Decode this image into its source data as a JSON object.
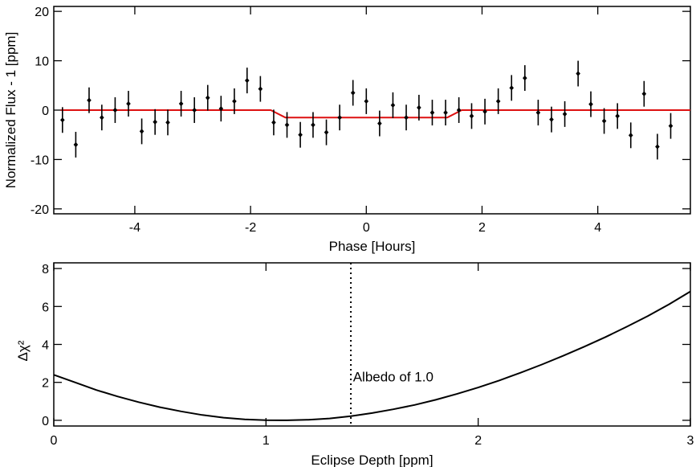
{
  "chart_data": [
    {
      "type": "scatter",
      "xlabel": "Phase [Hours]",
      "ylabel": "Normalized Flux - 1 [ppm]",
      "xlim": [
        -5.4,
        5.6
      ],
      "ylim": [
        -21,
        21
      ],
      "xticks": [
        -4,
        -2,
        0,
        2,
        4
      ],
      "yticks": [
        -20,
        -10,
        0,
        10,
        20
      ],
      "grid": false,
      "series": [
        {
          "type": "scatter_errorbars",
          "color": "#000000",
          "x": [
            -5.25,
            -5.02,
            -4.79,
            -4.57,
            -4.34,
            -4.11,
            -3.88,
            -3.65,
            -3.43,
            -3.2,
            -2.97,
            -2.74,
            -2.51,
            -2.28,
            -2.06,
            -1.83,
            -1.6,
            -1.37,
            -1.14,
            -0.92,
            -0.69,
            -0.46,
            -0.23,
            0.0,
            0.23,
            0.46,
            0.69,
            0.91,
            1.14,
            1.37,
            1.6,
            1.82,
            2.05,
            2.28,
            2.51,
            2.74,
            2.97,
            3.2,
            3.43,
            3.66,
            3.88,
            4.11,
            4.34,
            4.57,
            4.8,
            5.03,
            5.26
          ],
          "y": [
            -2,
            -7,
            2,
            -1.5,
            0,
            1.3,
            -4.3,
            -2.4,
            -2.5,
            1.3,
            0,
            2.5,
            0.3,
            1.8,
            6,
            4.3,
            -2.5,
            -3,
            -5,
            -3,
            -4.5,
            -1.5,
            3.5,
            1.8,
            -2.7,
            1,
            -1.5,
            0.5,
            -0.5,
            -0.5,
            0,
            -1.2,
            -0.3,
            1.8,
            4.5,
            6.5,
            -0.5,
            -1.9,
            -0.8,
            7.4,
            1.2,
            -2.2,
            -1.2,
            -5.1,
            3.3,
            -7.4,
            -3.2
          ],
          "yerr": [
            2.6,
            2.6,
            2.6,
            2.6,
            2.6,
            2.6,
            2.6,
            2.6,
            2.6,
            2.6,
            2.6,
            2.6,
            2.6,
            2.6,
            2.6,
            2.6,
            2.6,
            2.6,
            2.6,
            2.6,
            2.6,
            2.6,
            2.6,
            2.6,
            2.6,
            2.6,
            2.6,
            2.6,
            2.6,
            2.6,
            2.6,
            2.6,
            2.6,
            2.6,
            2.6,
            2.6,
            2.6,
            2.6,
            2.6,
            2.6,
            2.6,
            2.6,
            2.6,
            2.6,
            2.6,
            2.6,
            2.6
          ]
        },
        {
          "type": "line",
          "color": "#dd1111",
          "x": [
            -5.28,
            -1.65,
            -1.4,
            1.4,
            1.65,
            5.6
          ],
          "y": [
            0,
            0,
            -1.5,
            -1.5,
            0,
            0
          ]
        }
      ]
    },
    {
      "type": "line",
      "xlabel": "Eclipse Depth [ppm]",
      "ylabel": "Δχ²",
      "xlim": [
        0,
        3
      ],
      "ylim": [
        -0.3,
        8.3
      ],
      "xticks": [
        0,
        1,
        2,
        3
      ],
      "yticks": [
        0,
        2,
        4,
        6,
        8
      ],
      "grid": false,
      "series": [
        {
          "type": "curve",
          "color": "#000000",
          "x": [
            0,
            0.1,
            0.2,
            0.3,
            0.4,
            0.5,
            0.6,
            0.7,
            0.8,
            0.9,
            1.0,
            1.07,
            1.1,
            1.2,
            1.3,
            1.4,
            1.5,
            1.6,
            1.7,
            1.8,
            1.9,
            2.0,
            2.1,
            2.2,
            2.3,
            2.4,
            2.5,
            2.6,
            2.7,
            2.8,
            2.9,
            3.0
          ],
          "y": [
            2.4,
            2.0,
            1.6,
            1.26,
            0.96,
            0.69,
            0.47,
            0.28,
            0.14,
            0.05,
            0.01,
            0.0,
            0.0,
            0.03,
            0.1,
            0.22,
            0.38,
            0.58,
            0.81,
            1.08,
            1.39,
            1.73,
            2.1,
            2.51,
            2.94,
            3.4,
            3.88,
            4.39,
            4.93,
            5.5,
            6.12,
            6.79
          ]
        }
      ],
      "vline": {
        "x": 1.4,
        "style": "dotted"
      },
      "annotation": {
        "text": "Albedo of 1.0",
        "x": 1.41,
        "y": 2.3
      }
    }
  ]
}
